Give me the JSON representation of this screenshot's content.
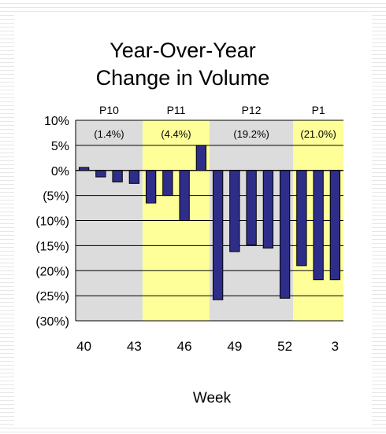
{
  "chart_data": {
    "type": "bar",
    "title_lines": [
      "Year-Over-Year",
      "Change in Volume"
    ],
    "xlabel": "Week",
    "ylabel": "",
    "ylim": [
      -30,
      10
    ],
    "yticks": [
      10,
      5,
      0,
      -5,
      -10,
      -15,
      -20,
      -25,
      -30
    ],
    "ytick_labels": [
      "10%",
      "5%",
      "0%",
      "(5%)",
      "(10%)",
      "(15%)",
      "(20%)",
      "(25%)",
      "(30%)"
    ],
    "xtick_labels": [
      "40",
      "43",
      "46",
      "49",
      "52",
      "3"
    ],
    "xtick_positions": [
      0,
      3,
      6,
      9,
      12,
      15
    ],
    "categories": [
      "40",
      "41",
      "42",
      "43",
      "44",
      "45",
      "46",
      "47",
      "48",
      "49",
      "50",
      "51",
      "52",
      "1",
      "2",
      "3"
    ],
    "values": [
      0.6,
      -1.3,
      -2.3,
      -2.6,
      -6.5,
      -5.0,
      -10.0,
      5.0,
      -25.8,
      -16.2,
      -14.9,
      -15.5,
      -25.5,
      -19.0,
      -21.8,
      -21.8
    ],
    "bar_color": "#2e2e8a",
    "periods": [
      {
        "name": "P10",
        "value_label": "(1.4%)",
        "start": 0,
        "end": 3,
        "color": "#dcdcdc"
      },
      {
        "name": "P11",
        "value_label": "(4.4%)",
        "start": 4,
        "end": 7,
        "color": "#ffff99"
      },
      {
        "name": "P12",
        "value_label": "(19.2%)",
        "start": 8,
        "end": 12,
        "color": "#dcdcdc"
      },
      {
        "name": "P1",
        "value_label": "(21.0%)",
        "start": 13,
        "end": 15,
        "color": "#ffff99"
      }
    ],
    "grid": true,
    "legend": "none"
  }
}
